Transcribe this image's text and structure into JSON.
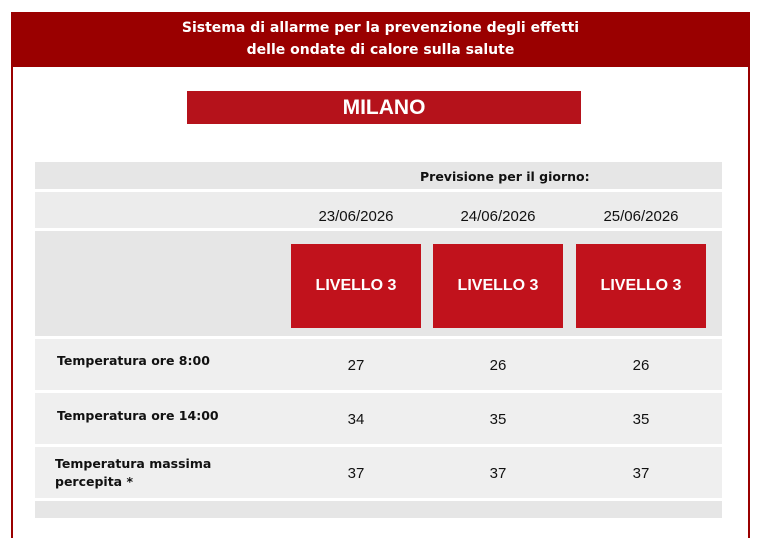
{
  "header": {
    "line1": "Sistema di allarme per la prevenzione degli effetti",
    "line2": "delle ondate di calore sulla salute"
  },
  "city": "MILANO",
  "forecast_label": "Previsione per il giorno:",
  "days": [
    {
      "date": "23/06/2026",
      "level": "LIVELLO 3"
    },
    {
      "date": "24/06/2026",
      "level": "LIVELLO 3"
    },
    {
      "date": "25/06/2026",
      "level": "LIVELLO 3"
    }
  ],
  "rows": [
    {
      "label": "Temperatura ore 8:00",
      "values": [
        "27",
        "26",
        "26"
      ]
    },
    {
      "label": "Temperatura ore 14:00",
      "values": [
        "34",
        "35",
        "35"
      ]
    },
    {
      "label_line1": "Temperatura massima",
      "label_line2": "percepita *",
      "values": [
        "37",
        "37",
        "37"
      ]
    }
  ],
  "colors": {
    "header_bg": "#9a0000",
    "city_bg": "#b5121b",
    "level_bg": "#c1121c",
    "band_bg": "#e6e6e6"
  }
}
